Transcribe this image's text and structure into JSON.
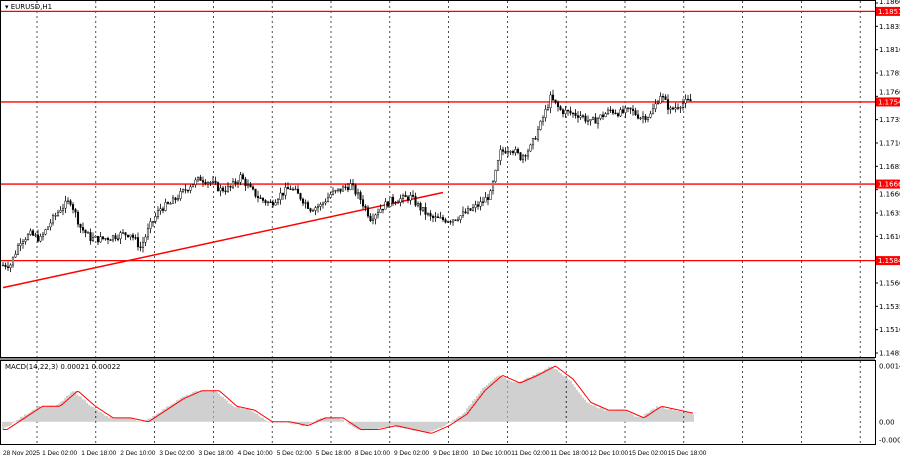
{
  "title": "EURUSD,H1",
  "macd_label": "MACD(14,22,3) 0.00021 0.00022",
  "colors": {
    "level": "#ff0000",
    "candle": "#000000",
    "macd_signal": "#ff0000",
    "macd_hist": "#a0a0a0"
  },
  "chart_data": [
    {
      "type": "candlestick",
      "symbol": "EURUSD",
      "timeframe": "H1",
      "ylim": [
        1.1485,
        1.186
      ],
      "y_ticks": [
        "1.1860",
        "1.1835",
        "1.1810",
        "1.1785",
        "1.1760",
        "1.1735",
        "1.1710",
        "1.1685",
        "1.1660",
        "1.1635",
        "1.1610",
        "1.1560",
        "1.1535",
        "1.1510",
        "1.1485"
      ],
      "x_ticks": [
        "28 Nov 2025",
        "1 Dec 02:00",
        "1 Dec 18:00",
        "2 Dec 10:00",
        "3 Dec 02:00",
        "3 Dec 18:00",
        "4 Dec 10:00",
        "5 Dec 02:00",
        "5 Dec 18:00",
        "8 Dec 10:00",
        "9 Dec 02:00",
        "9 Dec 18:00",
        "10 Dec 10:00",
        "11 Dec 02:00",
        "11 Dec 18:00",
        "12 Dec 10:00",
        "15 Dec 02:00",
        "15 Dec 18:00"
      ],
      "levels": [
        {
          "price": 1.1851,
          "label": "1.1851"
        },
        {
          "price": 1.1754,
          "label": "1.1754"
        },
        {
          "price": 1.1666,
          "label": "1.1666"
        },
        {
          "price": 1.1584,
          "label": "1.1584"
        }
      ],
      "trendline": {
        "start_price": 1.1555,
        "end_price": 1.1657
      },
      "close_approx": [
        1.1579,
        1.158,
        1.1606,
        1.1612,
        1.1607,
        1.1625,
        1.164,
        1.1648,
        1.162,
        1.1608,
        1.1607,
        1.1609,
        1.1612,
        1.1613,
        1.1598,
        1.1622,
        1.164,
        1.1645,
        1.1655,
        1.1665,
        1.1672,
        1.1668,
        1.166,
        1.1662,
        1.1674,
        1.166,
        1.165,
        1.1645,
        1.1655,
        1.1662,
        1.1652,
        1.164,
        1.1643,
        1.1655,
        1.166,
        1.1665,
        1.165,
        1.163,
        1.164,
        1.1648,
        1.165,
        1.1652,
        1.164,
        1.163,
        1.1628,
        1.1628,
        1.1632,
        1.1638,
        1.1645,
        1.1655,
        1.17,
        1.1705,
        1.1695,
        1.1705,
        1.173,
        1.1758,
        1.1745,
        1.1742,
        1.174,
        1.1732,
        1.1738,
        1.1745,
        1.1742,
        1.1745,
        1.1738,
        1.174,
        1.1762,
        1.1745,
        1.1752,
        1.1755
      ]
    },
    {
      "type": "bar",
      "name": "MACD(14,22,3)",
      "ylim": [
        -0.00047,
        0.00144
      ],
      "y_ticks": [
        "0.00144",
        "0.00",
        "-0.00047"
      ],
      "histogram_approx": [
        -0.0002,
        0.0001,
        0.0004,
        0.0004,
        0.0008,
        0.0004,
        0.0001,
        0.0001,
        0.0,
        0.0003,
        0.0006,
        0.0008,
        0.0008,
        0.0004,
        0.0003,
        0.0,
        0.0,
        -0.0001,
        0.0001,
        0.0001,
        -0.0002,
        -0.0002,
        -0.0001,
        -0.0002,
        -0.0003,
        -0.0001,
        0.0002,
        0.0008,
        0.0012,
        0.001,
        0.0012,
        0.00144,
        0.0011,
        0.0005,
        0.0003,
        0.0003,
        0.0001,
        0.0004,
        0.0003,
        0.0002
      ]
    }
  ]
}
